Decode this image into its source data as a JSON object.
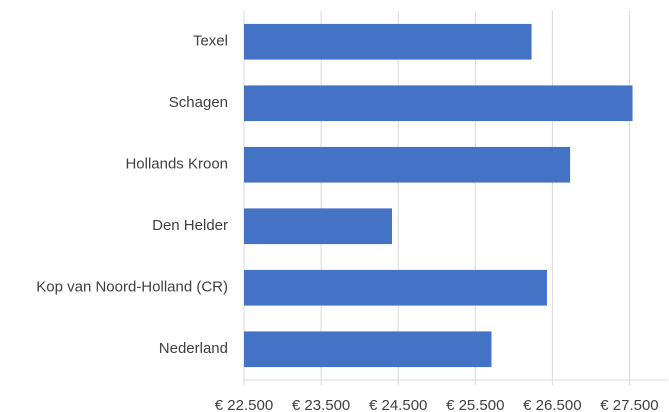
{
  "chart_data": {
    "type": "hbar",
    "categories": [
      "Texel",
      "Schagen",
      "Hollands Kroon",
      "Den Helder",
      "Kop van Noord-Holland (CR)",
      "Nederland"
    ],
    "values": [
      26230,
      27540,
      26730,
      24420,
      26430,
      25710
    ],
    "color": "#4472c4",
    "xlim": [
      22500,
      28000
    ],
    "xticks": [
      {
        "value": 22500,
        "label": "€ 22.500"
      },
      {
        "value": 23500,
        "label": "€ 23.500"
      },
      {
        "value": 24500,
        "label": "€ 24.500"
      },
      {
        "value": 25500,
        "label": "€ 25.500"
      },
      {
        "value": 26500,
        "label": "€ 26.500"
      },
      {
        "value": 27500,
        "label": "€ 27.500"
      }
    ],
    "grid": true
  }
}
